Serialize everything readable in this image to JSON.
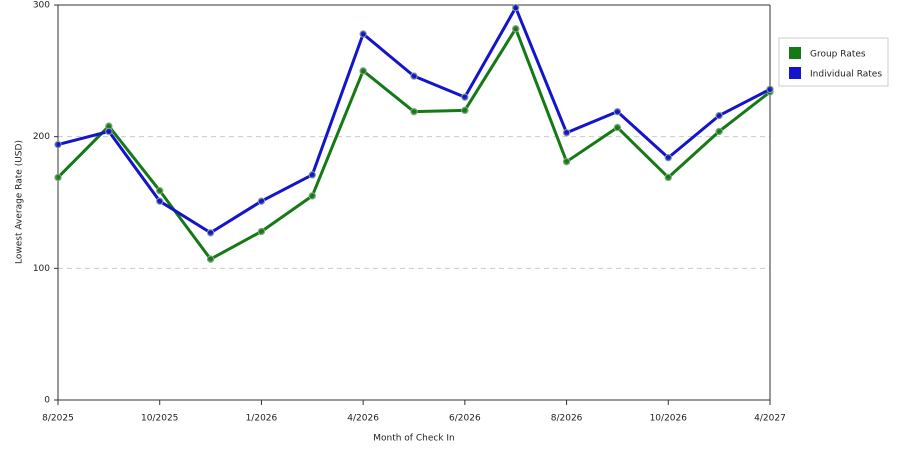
{
  "chart_data": {
    "type": "line",
    "x_label": "Month of Check In",
    "y_label": "Lowest Average Rate (USD)",
    "categories": [
      "8/2025",
      null,
      "10/2025",
      null,
      "1/2026",
      null,
      "4/2026",
      null,
      "6/2026",
      null,
      "8/2026",
      null,
      "10/2026",
      null,
      "4/2027"
    ],
    "series": [
      {
        "name": "Group Rates",
        "color": "#157a15",
        "values": [
          169,
          208,
          159,
          107,
          128,
          155,
          250,
          219,
          220,
          282,
          181,
          207,
          169,
          204,
          234
        ]
      },
      {
        "name": "Individual Rates",
        "color": "#1414cc",
        "values": [
          194,
          204,
          151,
          127,
          151,
          171,
          278,
          246,
          230,
          298,
          203,
          219,
          184,
          216,
          236
        ]
      }
    ],
    "ylim": [
      0,
      300
    ],
    "yticks": [
      0,
      100,
      200,
      300
    ],
    "grid": true,
    "legend": "top-right"
  }
}
